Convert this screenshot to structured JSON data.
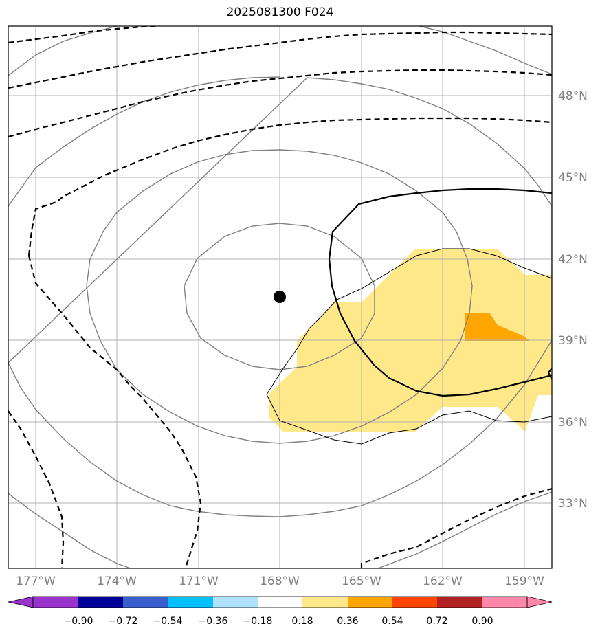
{
  "title": "2025081300 F024",
  "map": {
    "lat_labels": [
      "48°N",
      "45°N",
      "42°N",
      "39°N",
      "36°N",
      "33°N"
    ],
    "lon_labels": [
      "177°W",
      "174°W",
      "171°W",
      "168°W",
      "165°W",
      "162°W",
      "159°W"
    ],
    "center_marker": {
      "lon": -168.0,
      "lat": 40.5
    }
  },
  "colorbar": {
    "colors": [
      "#9933cc",
      "#000099",
      "#3a5fcd",
      "#00bfff",
      "#b0e2ff",
      "#ffffff",
      "#ffe88a",
      "#ffa500",
      "#ff4500",
      "#b22222",
      "#ff88aa"
    ],
    "tick_labels": [
      "−0.90",
      "−0.72",
      "−0.54",
      "−0.36",
      "−0.18",
      "0.18",
      "0.36",
      "0.54",
      "0.72",
      "0.90"
    ]
  }
}
